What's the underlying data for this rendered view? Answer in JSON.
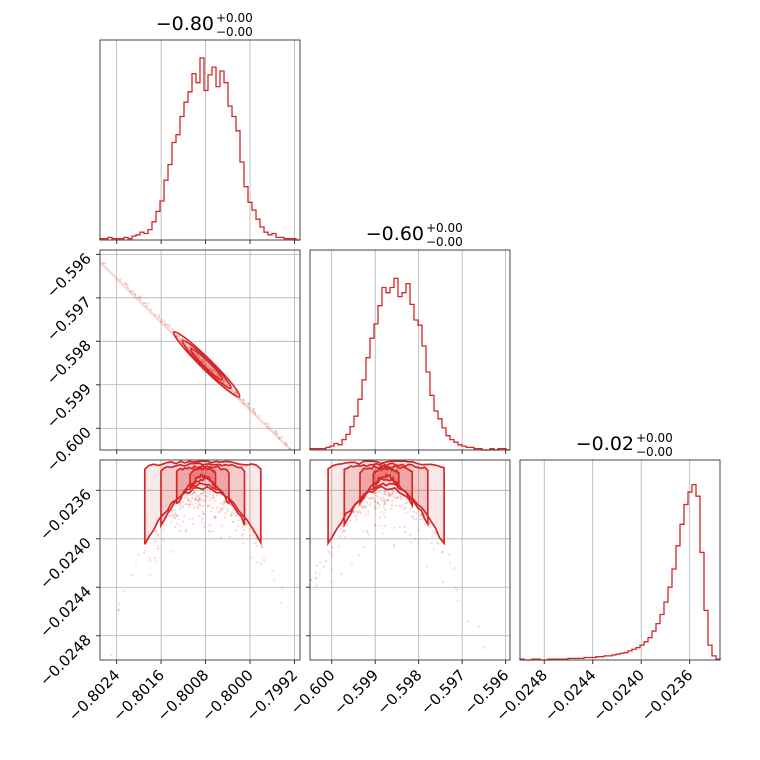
{
  "colors": {
    "main": "#d62728",
    "fill": "#d62728",
    "grid": "#b0b0b0"
  },
  "titles": [
    {
      "value": "−0.80",
      "plus": "+0.00",
      "minus": "−0.00"
    },
    {
      "value": "−0.60",
      "plus": "+0.00",
      "minus": "−0.00"
    },
    {
      "value": "−0.02",
      "plus": "+0.00",
      "minus": "−0.00"
    }
  ],
  "chart_data": {
    "type": "corner",
    "grid": true,
    "params": [
      {
        "range": [
          -0.8027,
          -0.7991
        ],
        "ticks": [
          -0.8024,
          -0.8016,
          -0.8008,
          -0.8,
          -0.7992
        ],
        "tick_labels": [
          "−0.8024",
          "−0.8016",
          "−0.8008",
          "−0.8000",
          "−0.7992"
        ]
      },
      {
        "range": [
          -0.6005,
          -0.5959
        ],
        "ticks": [
          -0.6,
          -0.599,
          -0.598,
          -0.597,
          -0.596
        ],
        "tick_labels": [
          "−0.600",
          "−0.599",
          "−0.598",
          "−0.597",
          "−0.596"
        ]
      },
      {
        "range": [
          -0.025,
          -0.02335
        ],
        "ticks": [
          -0.0248,
          -0.0244,
          -0.024,
          -0.0236
        ],
        "tick_labels": [
          "−0.0248",
          "−0.0244",
          "−0.0240",
          "−0.0236"
        ]
      }
    ],
    "histograms": [
      {
        "param": 0,
        "counts": [
          1,
          1,
          2,
          1,
          1,
          1,
          2,
          1,
          3,
          4,
          6,
          5,
          8,
          14,
          22,
          30,
          46,
          58,
          75,
          81,
          95,
          106,
          114,
          128,
          121,
          140,
          115,
          127,
          133,
          118,
          130,
          121,
          103,
          95,
          84,
          60,
          41,
          29,
          23,
          16,
          10,
          6,
          4,
          5,
          2,
          2,
          1,
          1,
          1,
          0
        ],
        "y_max": 140
      },
      {
        "param": 1,
        "counts": [
          1,
          1,
          1,
          1,
          2,
          3,
          5,
          4,
          8,
          12,
          18,
          26,
          39,
          54,
          71,
          86,
          97,
          111,
          125,
          121,
          125,
          132,
          118,
          121,
          128,
          112,
          100,
          96,
          80,
          60,
          42,
          30,
          24,
          17,
          11,
          8,
          6,
          4,
          3,
          2,
          2,
          1,
          1,
          0,
          0,
          1,
          0,
          1,
          1,
          0
        ],
        "y_max": 140
      },
      {
        "param": 2,
        "counts": [
          1,
          0,
          0,
          1,
          1,
          0,
          0,
          1,
          1,
          1,
          1,
          1,
          2,
          2,
          2,
          2,
          3,
          3,
          3,
          4,
          4,
          5,
          5,
          6,
          7,
          8,
          9,
          11,
          13,
          15,
          18,
          22,
          27,
          35,
          44,
          55,
          70,
          88,
          110,
          138,
          164,
          188,
          203,
          212,
          198,
          130,
          60,
          18,
          5,
          1
        ],
        "y_max": 220
      }
    ],
    "pairs": [
      {
        "x_param": 0,
        "y_param": 1,
        "shape": "thin negatively-correlated ellipse",
        "center": [
          -0.80075,
          -0.59853
        ]
      },
      {
        "x_param": 0,
        "y_param": 2,
        "shape": "arch",
        "peak": [
          -0.80085,
          -0.02345
        ]
      },
      {
        "x_param": 1,
        "y_param": 2,
        "shape": "arch",
        "peak": [
          -0.59875,
          -0.02345
        ]
      }
    ]
  }
}
